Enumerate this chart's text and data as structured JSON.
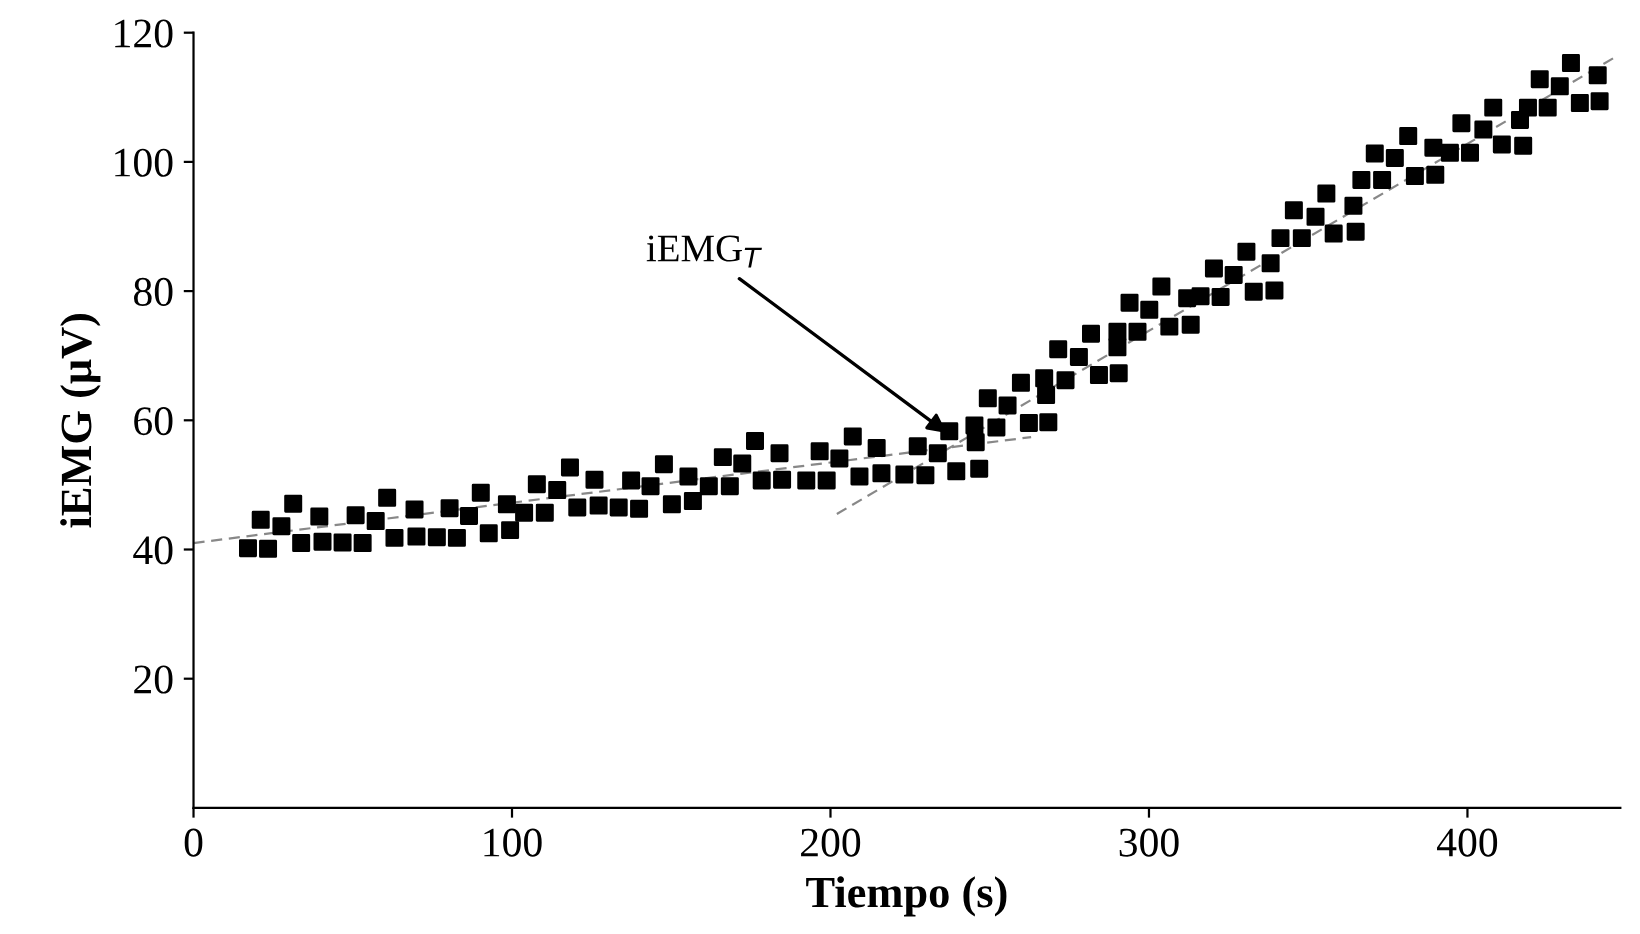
{
  "chart_data": {
    "type": "scatter",
    "xlabel": "Tiempo (s)",
    "ylabel": "iEMG (μV)",
    "xlim": [
      0,
      448
    ],
    "ylim": [
      0,
      120
    ],
    "xticks": [
      0,
      100,
      200,
      300,
      400
    ],
    "yticks": [
      20,
      40,
      60,
      80,
      100,
      120
    ],
    "grid": false,
    "legend": false,
    "annotations": [
      {
        "text": "iEMG$_{T}$",
        "x": 238,
        "y": 57.5
      }
    ],
    "series": [
      {
        "color": "#000000",
        "marker": "square",
        "x": [
          17.1,
          21.1,
          23.4,
          27.6,
          31.3,
          33.8,
          39.5,
          40.5,
          46.8,
          50.9,
          53.1,
          57.2,
          60.8,
          63.1,
          69.4,
          70.0,
          76.4,
          80.4,
          82.7,
          86.5,
          90.2,
          92.7,
          98.4,
          99.4,
          103.8,
          107.8,
          110.3,
          114.2,
          118.2,
          120.5,
          125.9,
          127.2,
          133.5,
          137.4,
          139.9,
          143.5,
          147.7,
          150.2,
          155.4,
          156.8,
          161.8,
          166.2,
          168.4,
          172.3,
          176.3,
          178.4,
          184.0,
          184.8,
          192.4,
          196.6,
          198.8,
          202.8,
          207.0,
          209.1,
          214.5,
          216.0,
          223.2,
          227.4,
          229.8,
          233.7,
          237.3,
          239.5,
          245.2,
          245.6,
          246.7,
          249.4,
          252.1,
          255.6,
          259.8,
          262.3,
          267.1,
          267.7,
          268.4,
          271.5,
          273.8,
          278.0,
          281.8,
          284.3,
          290.1,
          290.1,
          290.5,
          293.9,
          296.4,
          300.1,
          303.9,
          306.4,
          312.0,
          313.1,
          316.2,
          320.4,
          322.5,
          326.6,
          330.6,
          332.9,
          338.2,
          339.4,
          341.3,
          345.5,
          348.0,
          352.3,
          355.7,
          358.0,
          364.2,
          364.9,
          366.7,
          370.9,
          373.2,
          377.2,
          381.4,
          383.5,
          389.3,
          389.9,
          394.5,
          398.1,
          400.8,
          405.0,
          408.1,
          410.8,
          416.5,
          417.5,
          419.0,
          422.7,
          425.2,
          429.0,
          432.5,
          435.3,
          440.9,
          441.5
        ],
        "values": [
          40.2,
          44.6,
          40.1,
          43.6,
          47.1,
          41.0,
          45.1,
          41.2,
          41.1,
          45.3,
          41.0,
          44.4,
          48.0,
          41.8,
          46.2,
          42.0,
          41.9,
          46.4,
          41.8,
          45.2,
          48.8,
          42.5,
          47.0,
          43.0,
          45.7,
          50.1,
          45.7,
          49.2,
          52.7,
          46.5,
          50.8,
          46.8,
          46.5,
          50.7,
          46.3,
          49.8,
          53.2,
          47.0,
          51.3,
          47.5,
          49.8,
          54.3,
          49.8,
          53.3,
          56.8,
          50.7,
          54.9,
          50.8,
          50.7,
          55.2,
          50.7,
          54.1,
          57.5,
          51.3,
          55.7,
          51.8,
          51.6,
          56.0,
          51.5,
          54.9,
          58.3,
          52.1,
          59.2,
          56.6,
          52.5,
          63.4,
          58.9,
          62.3,
          65.8,
          59.6,
          66.5,
          63.9,
          59.7,
          71.0,
          66.2,
          69.8,
          73.4,
          67.0,
          73.7,
          71.3,
          67.3,
          78.2,
          73.7,
          77.1,
          80.7,
          74.5,
          78.9,
          74.8,
          79.2,
          83.5,
          79.1,
          82.5,
          86.1,
          79.9,
          84.3,
          80.1,
          88.2,
          92.5,
          88.2,
          91.5,
          95.1,
          88.9,
          93.2,
          89.2,
          97.2,
          101.3,
          97.2,
          100.6,
          104.0,
          97.8,
          102.2,
          98.0,
          101.4,
          106.0,
          101.4,
          105.0,
          108.4,
          102.7,
          106.5,
          102.5,
          108.4,
          112.8,
          108.4,
          111.7,
          115.3,
          109.1,
          113.4,
          109.4
        ]
      },
      {
        "type": "line",
        "marker": "none",
        "color": "#888888",
        "line_style": "dashed",
        "x": [
          0,
          263
        ],
        "values": [
          41,
          57.4
        ]
      },
      {
        "type": "line",
        "marker": "none",
        "color": "#888888",
        "line_style": "dashed",
        "x": [
          202,
          447
        ],
        "values": [
          45.5,
          116.4
        ]
      }
    ]
  }
}
